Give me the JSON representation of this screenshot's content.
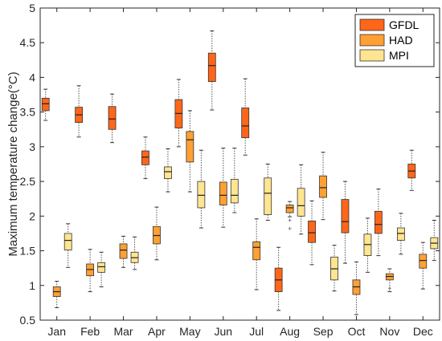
{
  "chart_data": {
    "type": "boxplot",
    "ylabel": "Maximum temperature change(°C)",
    "xlabel": "",
    "ylim": [
      0.5,
      5
    ],
    "yticks": [
      "0.5",
      "1",
      "1.5",
      "2",
      "2.5",
      "3",
      "3.5",
      "4",
      "4.5",
      "5"
    ],
    "legend_position": "top-right",
    "grid": false,
    "categories": [
      "Jan",
      "Feb",
      "Mar",
      "Apr",
      "May",
      "Jun",
      "Jul",
      "Aug",
      "Sep",
      "Oct",
      "Nov",
      "Dec"
    ],
    "series": [
      {
        "name": "GFDL",
        "color": "#FF6619",
        "boxes": [
          {
            "category": "Jan",
            "min": 3.38,
            "q1": 3.52,
            "median": 3.62,
            "q3": 3.7,
            "max": 3.83
          },
          {
            "category": "Feb",
            "min": 3.14,
            "q1": 3.35,
            "median": 3.46,
            "q3": 3.57,
            "max": 3.88
          },
          {
            "category": "Mar",
            "min": 3.06,
            "q1": 3.25,
            "median": 3.4,
            "q3": 3.58,
            "max": 3.76
          },
          {
            "category": "Apr",
            "min": 2.54,
            "q1": 2.74,
            "median": 2.85,
            "q3": 2.94,
            "max": 3.14
          },
          {
            "category": "May",
            "min": 3.0,
            "q1": 3.27,
            "median": 3.48,
            "q3": 3.68,
            "max": 3.97
          },
          {
            "category": "Jun",
            "min": 3.53,
            "q1": 3.94,
            "median": 4.17,
            "q3": 4.35,
            "max": 4.67
          },
          {
            "category": "Jul",
            "min": 2.88,
            "q1": 3.13,
            "median": 3.3,
            "q3": 3.56,
            "max": 3.98
          },
          {
            "category": "Aug",
            "min": 0.64,
            "q1": 0.91,
            "median": 1.08,
            "q3": 1.25,
            "max": 1.55
          },
          {
            "category": "Sep",
            "min": 1.3,
            "q1": 1.62,
            "median": 1.76,
            "q3": 1.93,
            "max": 2.22
          },
          {
            "category": "Oct",
            "min": 1.32,
            "q1": 1.76,
            "median": 1.92,
            "q3": 2.24,
            "max": 2.5
          },
          {
            "category": "Nov",
            "min": 1.43,
            "q1": 1.75,
            "median": 1.88,
            "q3": 2.07,
            "max": 2.39
          },
          {
            "category": "Dec",
            "min": 2.37,
            "q1": 2.55,
            "median": 2.65,
            "q3": 2.75,
            "max": 2.95
          }
        ]
      },
      {
        "name": "HAD",
        "color": "#FFA033",
        "boxes": [
          {
            "category": "Jan",
            "min": 0.68,
            "q1": 0.84,
            "median": 0.91,
            "q3": 0.98,
            "max": 1.06
          },
          {
            "category": "Feb",
            "min": 0.91,
            "q1": 1.14,
            "median": 1.23,
            "q3": 1.31,
            "max": 1.52
          },
          {
            "category": "Mar",
            "min": 1.26,
            "q1": 1.39,
            "median": 1.51,
            "q3": 1.6,
            "max": 1.71
          },
          {
            "category": "Apr",
            "min": 1.37,
            "q1": 1.6,
            "median": 1.72,
            "q3": 1.85,
            "max": 2.13
          },
          {
            "category": "May",
            "min": 2.35,
            "q1": 2.78,
            "median": 3.1,
            "q3": 3.22,
            "max": 3.52
          },
          {
            "category": "Jun",
            "min": 1.84,
            "q1": 2.16,
            "median": 2.3,
            "q3": 2.49,
            "max": 2.98
          },
          {
            "category": "Jul",
            "min": 0.94,
            "q1": 1.37,
            "median": 1.55,
            "q3": 1.63,
            "max": 1.96
          },
          {
            "category": "Aug",
            "min": 1.99,
            "q1": 2.05,
            "median": 2.12,
            "q3": 2.16,
            "max": 2.21,
            "outliers": [
              1.82,
              1.94
            ]
          },
          {
            "category": "Sep",
            "min": 1.95,
            "q1": 2.27,
            "median": 2.41,
            "q3": 2.58,
            "max": 2.92
          },
          {
            "category": "Oct",
            "min": 0.58,
            "q1": 0.87,
            "median": 0.98,
            "q3": 1.08,
            "max": 1.34
          },
          {
            "category": "Nov",
            "min": 0.91,
            "q1": 1.08,
            "median": 1.13,
            "q3": 1.17,
            "max": 1.24,
            "outliers": [
              0.96
            ]
          },
          {
            "category": "Dec",
            "min": 0.95,
            "q1": 1.25,
            "median": 1.36,
            "q3": 1.45,
            "max": 1.62
          }
        ]
      },
      {
        "name": "MPI",
        "color": "#FFE591",
        "boxes": [
          {
            "category": "Jan",
            "min": 1.26,
            "q1": 1.51,
            "median": 1.65,
            "q3": 1.75,
            "max": 1.89
          },
          {
            "category": "Feb",
            "min": 0.98,
            "q1": 1.19,
            "median": 1.27,
            "q3": 1.33,
            "max": 1.48
          },
          {
            "category": "Mar",
            "min": 1.23,
            "q1": 1.33,
            "median": 1.4,
            "q3": 1.48,
            "max": 1.7
          },
          {
            "category": "Apr",
            "min": 2.35,
            "q1": 2.54,
            "median": 2.64,
            "q3": 2.71,
            "max": 2.97
          },
          {
            "category": "May",
            "min": 1.83,
            "q1": 2.12,
            "median": 2.3,
            "q3": 2.5,
            "max": 2.95
          },
          {
            "category": "Jun",
            "min": 2.05,
            "q1": 2.19,
            "median": 2.3,
            "q3": 2.53,
            "max": 2.98
          },
          {
            "category": "Jul",
            "min": 1.94,
            "q1": 2.02,
            "median": 2.33,
            "q3": 2.55,
            "max": 2.75
          },
          {
            "category": "Aug",
            "min": 1.74,
            "q1": 2.0,
            "median": 2.15,
            "q3": 2.4,
            "max": 2.74
          },
          {
            "category": "Sep",
            "min": 0.92,
            "q1": 1.08,
            "median": 1.24,
            "q3": 1.41,
            "max": 1.58
          },
          {
            "category": "Oct",
            "min": 1.19,
            "q1": 1.43,
            "median": 1.59,
            "q3": 1.74,
            "max": 1.97
          },
          {
            "category": "Nov",
            "min": 1.45,
            "q1": 1.65,
            "median": 1.75,
            "q3": 1.83,
            "max": 2.04
          },
          {
            "category": "Dec",
            "min": 1.36,
            "q1": 1.53,
            "median": 1.61,
            "q3": 1.69,
            "max": 1.94
          }
        ]
      }
    ]
  }
}
